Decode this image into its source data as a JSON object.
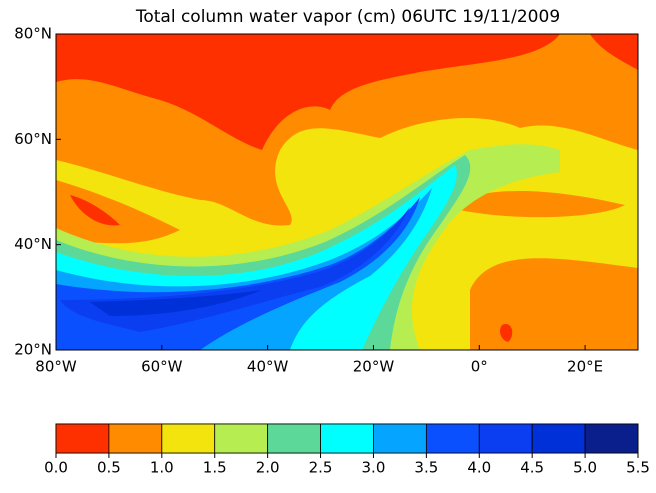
{
  "map": {
    "title": "Total column water vapor (cm) 06UTC 19/11/2009",
    "xlim": [
      -80,
      30
    ],
    "ylim": [
      20,
      80
    ],
    "xticks": [
      {
        "value": -80,
        "label": "80°W"
      },
      {
        "value": -60,
        "label": "60°W"
      },
      {
        "value": -40,
        "label": "40°W"
      },
      {
        "value": -20,
        "label": "20°W"
      },
      {
        "value": 0,
        "label": "0°"
      },
      {
        "value": 20,
        "label": "20°E"
      }
    ],
    "yticks": [
      {
        "value": 80,
        "label": "80°N"
      },
      {
        "value": 60,
        "label": "60°N"
      },
      {
        "value": 40,
        "label": "40°N"
      },
      {
        "value": 20,
        "label": "20°N"
      }
    ]
  },
  "colorbar": {
    "bounds": [
      {
        "value": 0,
        "label": "0.0"
      },
      {
        "value": 0.5,
        "label": "0.5"
      },
      {
        "value": 1,
        "label": "1.0"
      },
      {
        "value": 1.5,
        "label": "1.5"
      },
      {
        "value": 2,
        "label": "2.0"
      },
      {
        "value": 2.5,
        "label": "2.5"
      },
      {
        "value": 3,
        "label": "3.0"
      },
      {
        "value": 3.5,
        "label": "3.5"
      },
      {
        "value": 4,
        "label": "4.0"
      },
      {
        "value": 4.5,
        "label": "4.5"
      },
      {
        "value": 5,
        "label": "5.0"
      },
      {
        "value": 5.5,
        "label": "5.5"
      }
    ],
    "colors": [
      "#ff3000",
      "#ff8c00",
      "#f2e40c",
      "#b6ee52",
      "#5cd898",
      "#00ffff",
      "#05a5ff",
      "#0a50ff",
      "#0a3ef0",
      "#0030d8",
      "#0a1e8c"
    ]
  }
}
